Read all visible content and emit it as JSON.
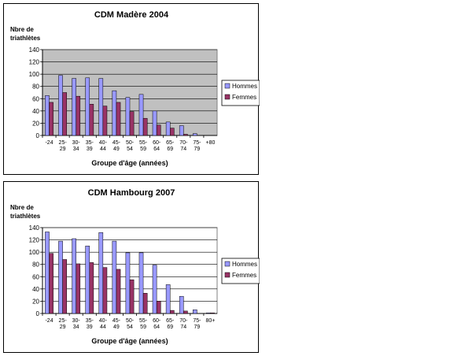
{
  "chart_data": [
    {
      "type": "bar",
      "title": "CDM Madère 2004",
      "ylabel": "Nbre de triathlètes",
      "xlabel": "Groupe d'âge (années)",
      "ylim": [
        0,
        140
      ],
      "yticks": [
        0,
        20,
        40,
        60,
        80,
        100,
        120,
        140
      ],
      "categories": [
        "-24",
        "25-29",
        "30-34",
        "35-39",
        "40-44",
        "45-49",
        "50-54",
        "55-59",
        "60-64",
        "65-69",
        "70-74",
        "75-79",
        "+80"
      ],
      "series": [
        {
          "name": "Hommes",
          "color": "#9999ff",
          "values": [
            65,
            98,
            93,
            94,
            93,
            73,
            62,
            67,
            40,
            22,
            16,
            3,
            0
          ]
        },
        {
          "name": "Femmes",
          "color": "#993366",
          "values": [
            54,
            70,
            64,
            51,
            48,
            54,
            39,
            28,
            17,
            12,
            2,
            0,
            0
          ]
        }
      ],
      "legend": "right",
      "plot_background": "#c0c0c0",
      "grid": true
    },
    {
      "type": "bar",
      "title": "CDM Hambourg 2007",
      "ylabel": "Nbre de triathlètes",
      "xlabel": "Groupe d'âge (années)",
      "ylim": [
        0,
        140
      ],
      "yticks": [
        0,
        20,
        40,
        60,
        80,
        100,
        120,
        140
      ],
      "categories": [
        "-24",
        "25-29",
        "30-34",
        "35-39",
        "40-44",
        "45-49",
        "50-54",
        "55-59",
        "60-64",
        "65-69",
        "70-74",
        "75-79",
        "80+"
      ],
      "series": [
        {
          "name": "Hommes",
          "color": "#9999ff",
          "values": [
            133,
            118,
            122,
            110,
            132,
            118,
            99,
            99,
            79,
            47,
            28,
            6,
            1
          ]
        },
        {
          "name": "Femmes",
          "color": "#993366",
          "values": [
            98,
            88,
            81,
            83,
            75,
            72,
            55,
            33,
            20,
            5,
            4,
            0,
            1
          ]
        }
      ],
      "legend": "right",
      "plot_background": "#ffffff",
      "grid": true
    }
  ]
}
